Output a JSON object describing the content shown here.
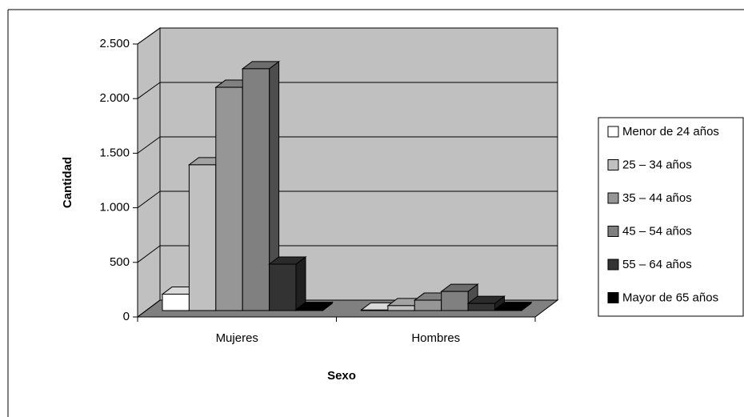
{
  "chart_data": {
    "type": "bar3d",
    "x_label": "Sexo",
    "y_label": "Cantidad",
    "categories": [
      "Mujeres",
      "Hombres"
    ],
    "series": [
      {
        "name": "Menor de 24 años",
        "color": "#ffffff",
        "values": [
          150,
          5
        ]
      },
      {
        "name": "25 – 34 años",
        "color": "#c0c0c0",
        "values": [
          1335,
          45
        ]
      },
      {
        "name": "35 – 44 años",
        "color": "#969696",
        "values": [
          2045,
          95
        ]
      },
      {
        "name": "45 – 54 años",
        "color": "#808080",
        "values": [
          2215,
          175
        ]
      },
      {
        "name": "55 – 64 años",
        "color": "#333333",
        "values": [
          425,
          65
        ]
      },
      {
        "name": "Mayor de 65 años",
        "color": "#000000",
        "values": [
          10,
          10
        ]
      }
    ],
    "ylim": [
      0,
      2500
    ],
    "yticks": [
      0,
      500,
      {
        "value": 1000,
        "label": "1.000"
      },
      {
        "value": 1500,
        "label": "1.500"
      },
      {
        "value": 2000,
        "label": "2.000"
      },
      {
        "value": 2500,
        "label": "2.500"
      }
    ],
    "grid": true,
    "legend": "right"
  }
}
